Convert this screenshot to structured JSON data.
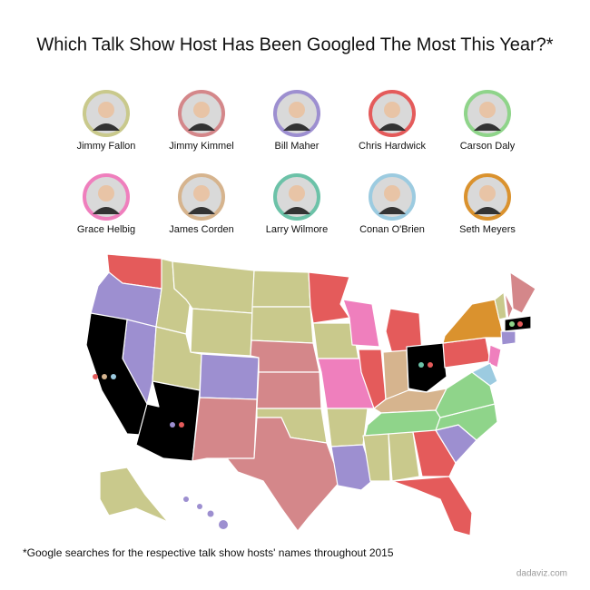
{
  "title": "Which Talk Show Host Has Been Googled The Most This Year?*",
  "hosts": [
    {
      "name": "Jimmy Fallon",
      "color": "#c9c98c"
    },
    {
      "name": "Jimmy Kimmel",
      "color": "#d4878a"
    },
    {
      "name": "Bill Maher",
      "color": "#9d8fd0"
    },
    {
      "name": "Chris Hardwick",
      "color": "#e45b5b"
    },
    {
      "name": "Carson Daly",
      "color": "#8fd48a"
    },
    {
      "name": "Grace Helbig",
      "color": "#ef7fbd"
    },
    {
      "name": "James Corden",
      "color": "#d6b48e"
    },
    {
      "name": "Larry Wilmore",
      "color": "#6cc2a8"
    },
    {
      "name": "Conan O'Brien",
      "color": "#9ccbe0"
    },
    {
      "name": "Seth Meyers",
      "color": "#da922e"
    }
  ],
  "footnote": "*Google searches for the respective talk show hosts' names throughout 2015",
  "source": "dadaviz.com"
}
